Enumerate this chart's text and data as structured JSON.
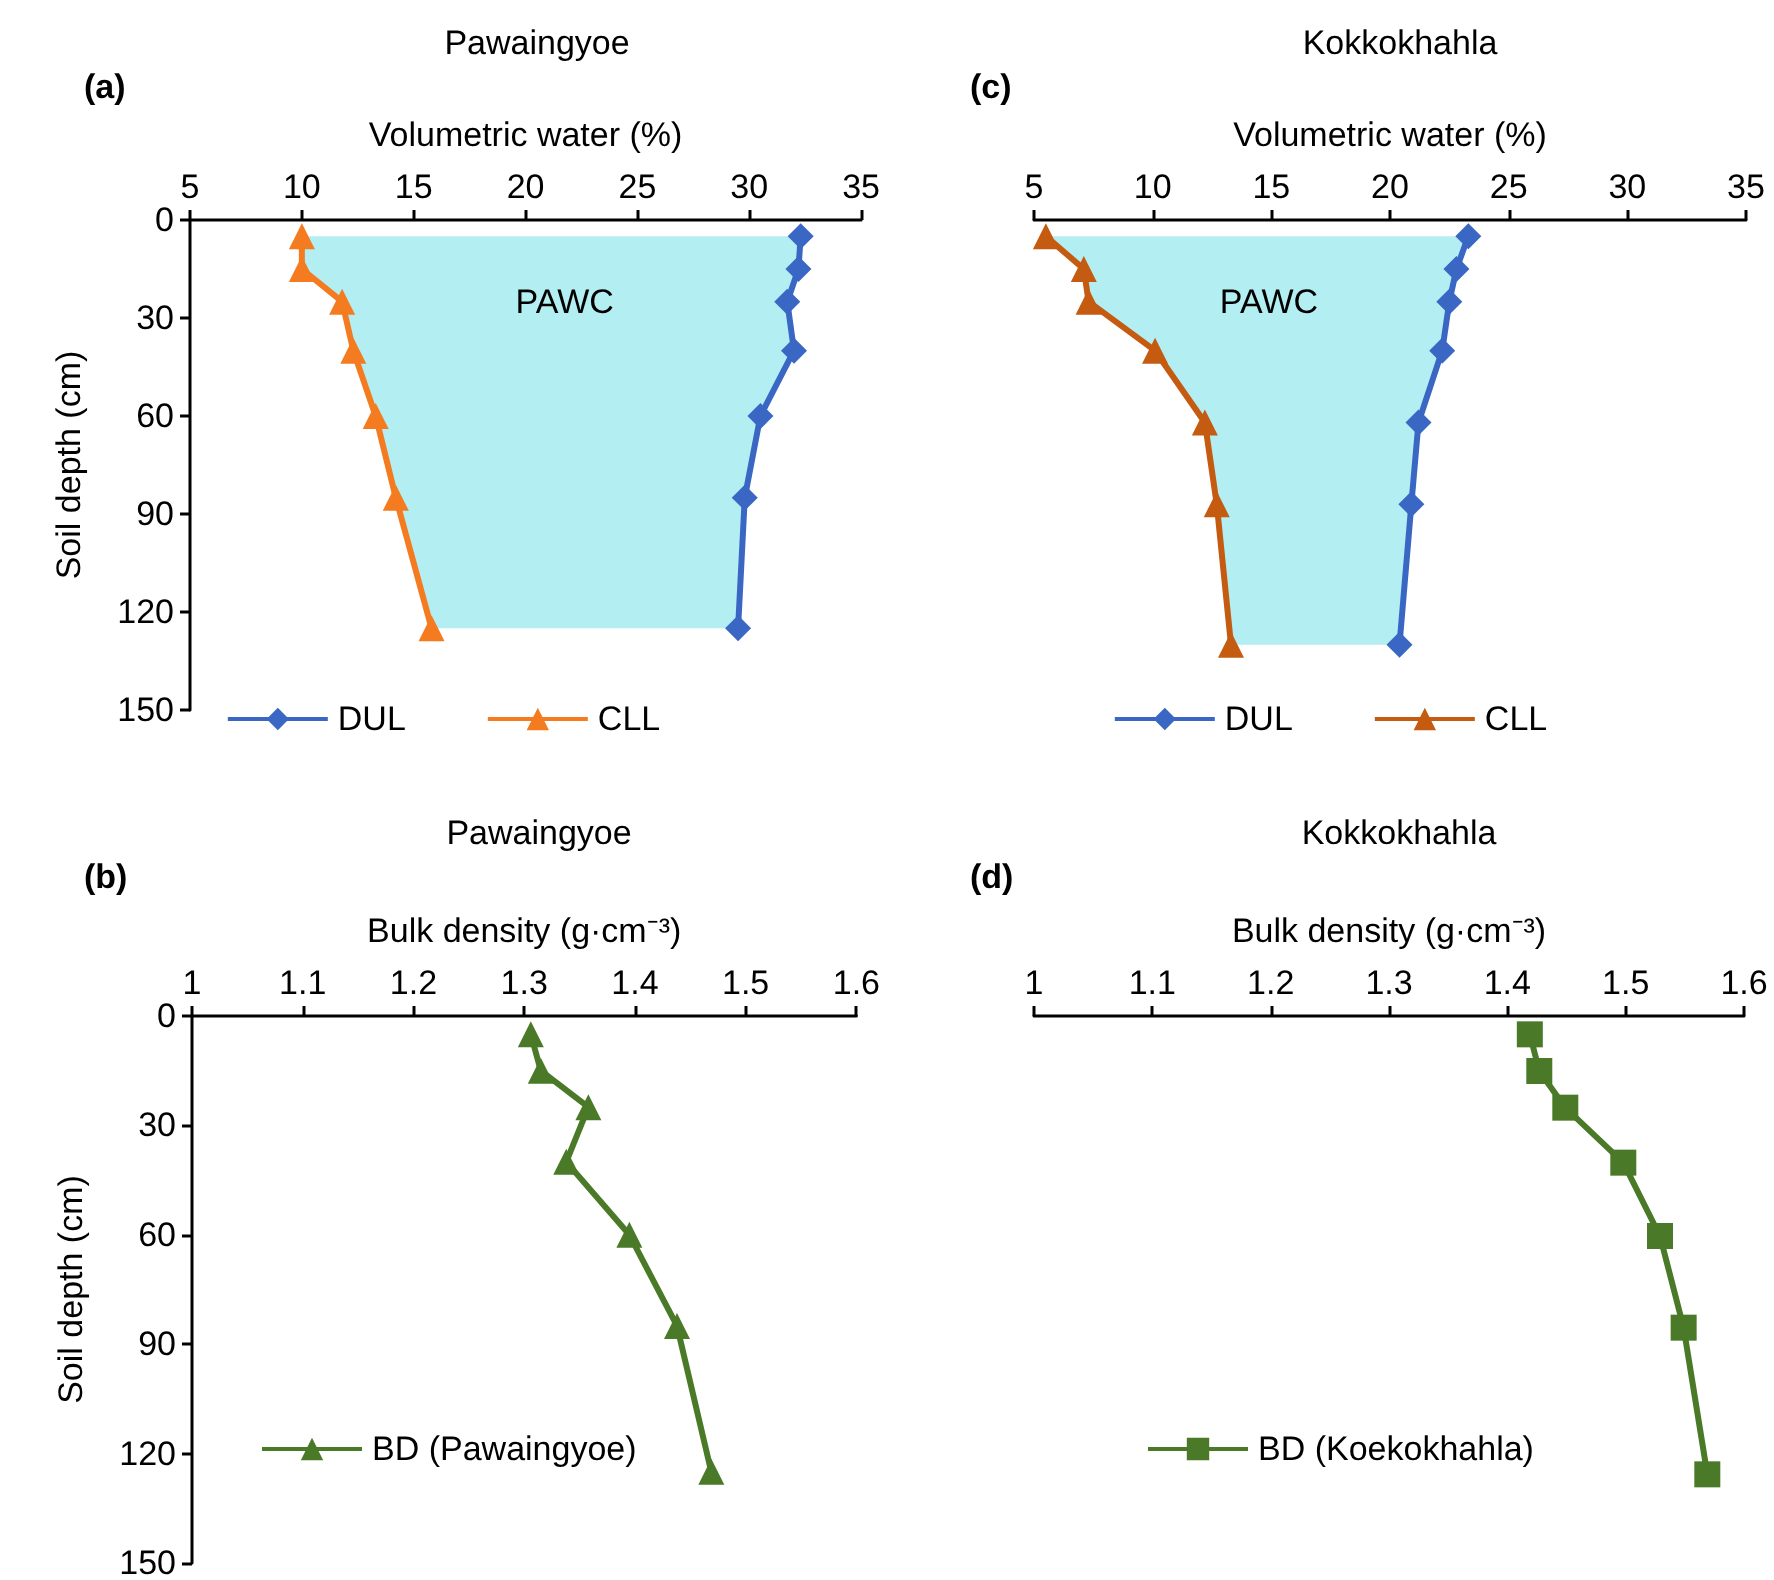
{
  "chart_data": [
    {
      "type": "line",
      "title": "Pawaingyoe",
      "xlabel": "Volumetric water (%)",
      "ylabel": "Soil depth (cm)",
      "annotations": [
        "(a)",
        "PAWC"
      ],
      "orientation": "horizontal",
      "x": [
        5,
        15,
        25,
        40,
        60,
        85,
        125
      ],
      "series": [
        {
          "name": "DUL",
          "color": "#3a66c4",
          "marker": "diamond",
          "values": [
            32.3,
            32.2,
            31.7,
            32.0,
            30.5,
            29.8,
            29.5
          ]
        },
        {
          "name": "CLL",
          "color": "#f47b20",
          "marker": "triangle",
          "values": [
            10.0,
            10.0,
            11.8,
            12.3,
            13.3,
            14.2,
            15.8
          ],
          "lower": [
            10.0,
            10.0,
            11.8,
            12.3,
            13.3,
            14.2,
            15.8
          ],
          "upper": [
            32.3,
            32.2,
            31.7,
            32.0,
            30.5,
            29.8,
            29.5
          ]
        }
      ],
      "xlim": [
        5,
        35
      ],
      "xticks": [
        5,
        10,
        15,
        20,
        25,
        30,
        35
      ],
      "ylim": [
        150,
        0
      ],
      "yticks": [
        0,
        30,
        60,
        90,
        120,
        150
      ],
      "grid": false,
      "legend": "bottom"
    },
    {
      "type": "line",
      "title": "Kokkokhahla",
      "xlabel": "Volumetric water (%)",
      "annotations": [
        "(c)",
        "PAWC"
      ],
      "orientation": "horizontal",
      "x": [
        5,
        15,
        25,
        40,
        62,
        87,
        130
      ],
      "series": [
        {
          "name": "DUL",
          "color": "#3a66c4",
          "marker": "diamond",
          "values": [
            23.3,
            22.8,
            22.5,
            22.2,
            21.2,
            20.9,
            20.4
          ]
        },
        {
          "name": "CLL",
          "color": "#c55a11",
          "marker": "triangle",
          "values": [
            5.5,
            7.1,
            7.3,
            10.1,
            12.2,
            12.7,
            13.3
          ],
          "lower": [
            5.5,
            7.1,
            7.3,
            10.1,
            12.2,
            12.7,
            13.3
          ],
          "upper": [
            23.3,
            22.8,
            22.5,
            22.2,
            21.2,
            20.9,
            20.4
          ]
        }
      ],
      "xlim": [
        5,
        35
      ],
      "xticks": [
        5,
        10,
        15,
        20,
        25,
        30,
        35
      ],
      "ylim": [
        150,
        0
      ],
      "yticks": [
        0,
        30,
        60,
        90,
        120,
        150
      ],
      "tick_labels": "x",
      "grid": false,
      "legend": "bottom"
    },
    {
      "type": "line",
      "title": "Pawaingyoe",
      "xlabel": "Bulk density (g·cm⁻³)",
      "ylabel": "Soil depth (cm)",
      "annotations": [
        "(b)"
      ],
      "orientation": "horizontal",
      "x": [
        5,
        15,
        25,
        40,
        60,
        85,
        125
      ],
      "series": [
        {
          "name": "BD (Pawaingyoe)",
          "color": "#4a7a28",
          "marker": "triangle",
          "values": [
            1.306,
            1.315,
            1.358,
            1.338,
            1.395,
            1.438,
            1.469
          ]
        }
      ],
      "xlim": [
        1,
        1.6
      ],
      "xticks": [
        1,
        1.1,
        1.2,
        1.3,
        1.4,
        1.5,
        1.6
      ],
      "ylim": [
        150,
        0
      ],
      "yticks": [
        0,
        30,
        60,
        90,
        120,
        150
      ],
      "grid": false,
      "legend": "bottom left"
    },
    {
      "type": "line",
      "title": "Kokkokhahla",
      "xlabel": "Bulk density (g·cm⁻³)",
      "annotations": [
        "(d)"
      ],
      "orientation": "horizontal",
      "x": [
        5,
        15,
        25,
        40,
        60,
        85,
        125
      ],
      "series": [
        {
          "name": "BD (Koekokhahla)",
          "color": "#4a7a28",
          "marker": "square",
          "values": [
            1.419,
            1.427,
            1.449,
            1.498,
            1.529,
            1.549,
            1.569
          ]
        }
      ],
      "xlim": [
        1,
        1.6
      ],
      "xticks": [
        1,
        1.1,
        1.2,
        1.3,
        1.4,
        1.5,
        1.6
      ],
      "ylim": [
        150,
        0
      ],
      "yticks": [
        0,
        30,
        60,
        90,
        120,
        150
      ],
      "tick_labels": "x",
      "grid": false,
      "legend": "bottom left"
    }
  ]
}
